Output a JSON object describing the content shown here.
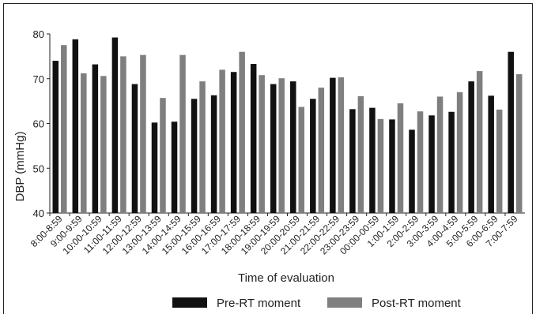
{
  "chart_data": {
    "type": "bar",
    "title": "",
    "xlabel": "Time of evaluation",
    "ylabel": "DBP (mmHg)",
    "ylim": [
      40,
      80
    ],
    "yticks": [
      40,
      50,
      60,
      70,
      80
    ],
    "grid": false,
    "legend_position": "bottom",
    "categories": [
      "8:00-8:59",
      "9:00-9:59",
      "10:00-10:59",
      "11:00-11:59",
      "12:00-12:59",
      "13:00-13:59",
      "14:00-14:59",
      "15:00-15:59",
      "16:00-16:59",
      "17:00-17:59",
      "18:00-18:59",
      "19:00-19:59",
      "20:00-20:59",
      "21:00-21:59",
      "22:00-22:59",
      "23:00-23:59",
      "00:00-00:59",
      "1:00-1:59",
      "2:00-2:59",
      "3:00-3:59",
      "4:00-4:59",
      "5:00-5:59",
      "6:00-6:59",
      "7:00-7:59"
    ],
    "series": [
      {
        "name": "Pre-RT moment",
        "color": "#111111",
        "values": [
          74.0,
          78.8,
          73.2,
          79.2,
          68.8,
          60.2,
          60.4,
          65.5,
          66.3,
          71.5,
          73.3,
          68.8,
          69.4,
          65.5,
          70.2,
          63.2,
          63.5,
          60.9,
          58.6,
          61.8,
          62.6,
          69.4,
          66.2,
          76.0
        ]
      },
      {
        "name": "Post-RT moment",
        "color": "#7f7f7f",
        "values": [
          77.5,
          71.2,
          70.6,
          75.0,
          75.3,
          65.7,
          75.3,
          69.4,
          72.0,
          76.0,
          70.8,
          70.1,
          63.7,
          68.0,
          70.3,
          66.1,
          61.0,
          64.5,
          62.7,
          66.0,
          67.0,
          71.7,
          63.1,
          71.0
        ]
      }
    ]
  }
}
